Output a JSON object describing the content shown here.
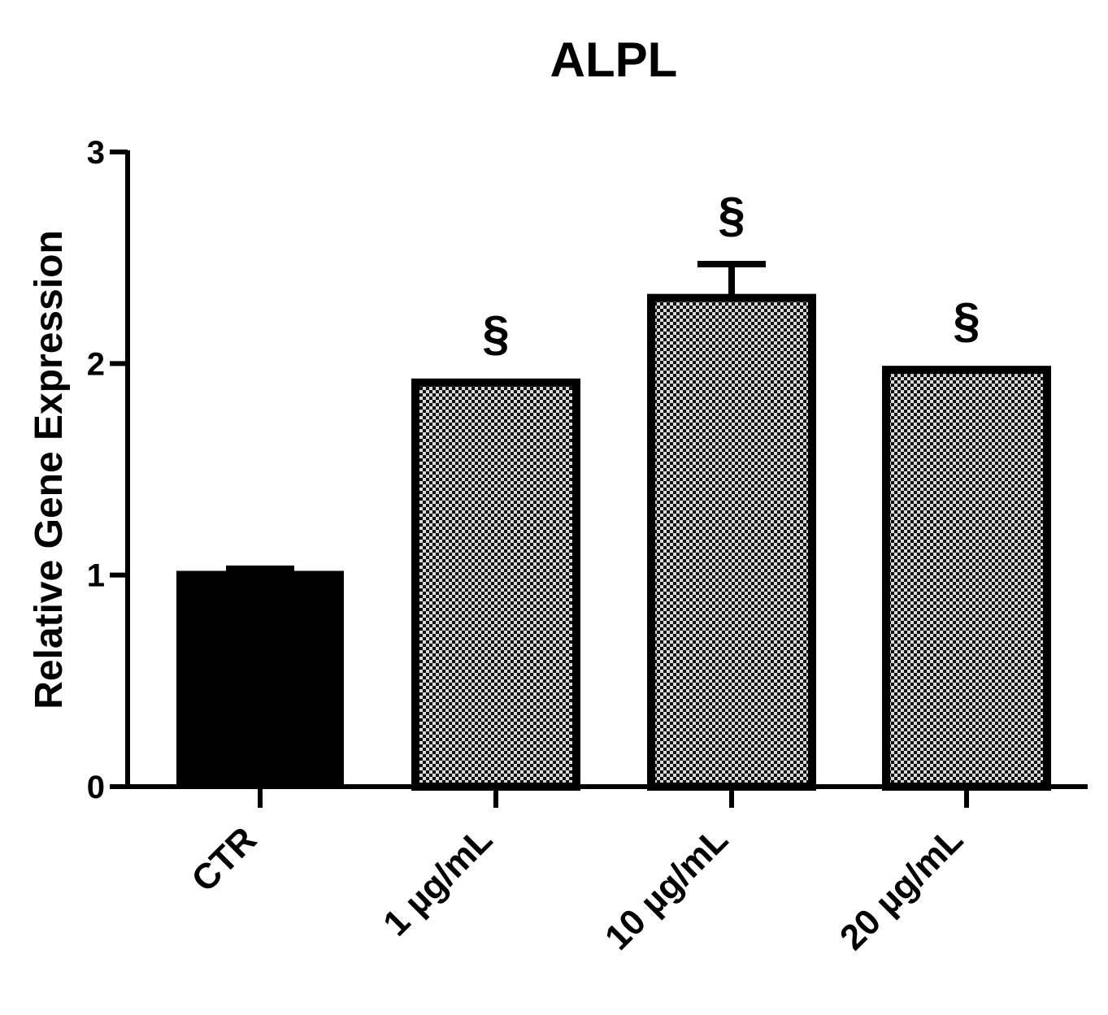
{
  "chart_data": {
    "type": "bar",
    "title": "ALPL",
    "xlabel": "",
    "ylabel": "Relative Gene Expression",
    "ylim": [
      0,
      3
    ],
    "yticks": [
      "0",
      "1",
      "2",
      "3"
    ],
    "categories": [
      "CTR",
      "1 µg/mL",
      "10 µg/mL",
      "20 µg/mL"
    ],
    "values": [
      1.02,
      1.91,
      2.31,
      1.97
    ],
    "errors": [
      0.01,
      0.0,
      0.16,
      0.0
    ],
    "annotations": [
      "",
      "§",
      "§",
      "§"
    ],
    "fills": [
      "solid",
      "checkered",
      "checkered",
      "checkered"
    ],
    "grid": false,
    "legend": "none",
    "colors": {
      "bar_edge": "#000000",
      "solid_fill": "#000000",
      "check_dark": "#111111",
      "check_light": "#d9d9d9",
      "background": "#ffffff"
    }
  }
}
